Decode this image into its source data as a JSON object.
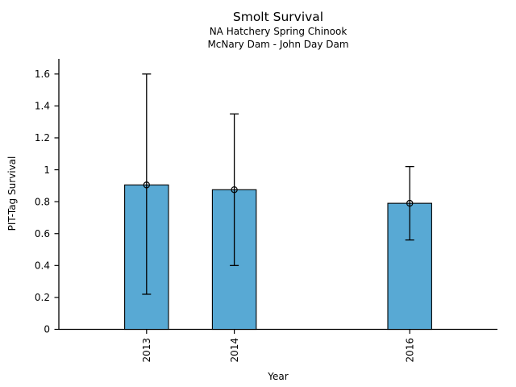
{
  "figure": {
    "title": "Smolt Survival",
    "subtitle_line1": "NA Hatchery Spring Chinook",
    "subtitle_line2": "McNary Dam - John Day Dam"
  },
  "chart_data": {
    "type": "bar",
    "title": "Smolt Survival",
    "subtitle": [
      "NA Hatchery Spring Chinook",
      "McNary Dam - John Day Dam"
    ],
    "xlabel": "Year",
    "ylabel": "PIT-Tag Survival",
    "categories": [
      2013,
      2014,
      2016
    ],
    "values": [
      0.905,
      0.875,
      0.79
    ],
    "error_low": [
      0.22,
      0.4,
      0.56
    ],
    "error_high": [
      1.6,
      1.35,
      1.02
    ],
    "xlim": [
      2012,
      2017
    ],
    "ylim": [
      0,
      1.695
    ],
    "xticks": [
      2013,
      2014,
      2016
    ],
    "xtick_labels": [
      "2013",
      "2014",
      "2016"
    ],
    "xtick_rotation": 90,
    "yticks": [
      0,
      0.2,
      0.4,
      0.6,
      0.8,
      1,
      1.2,
      1.4,
      1.6
    ],
    "ytick_labels": [
      "0",
      "0.2",
      "0.4",
      "0.6",
      "0.8",
      "1",
      "1.2",
      "1.4",
      "1.6"
    ],
    "bar_width_years": 0.5,
    "bar_color": "#58A9D4",
    "bar_edge_color": "#000000",
    "error_color": "#000000",
    "marker": "open-circle",
    "grid": false,
    "legend": null,
    "background": "#FFFFFF"
  }
}
